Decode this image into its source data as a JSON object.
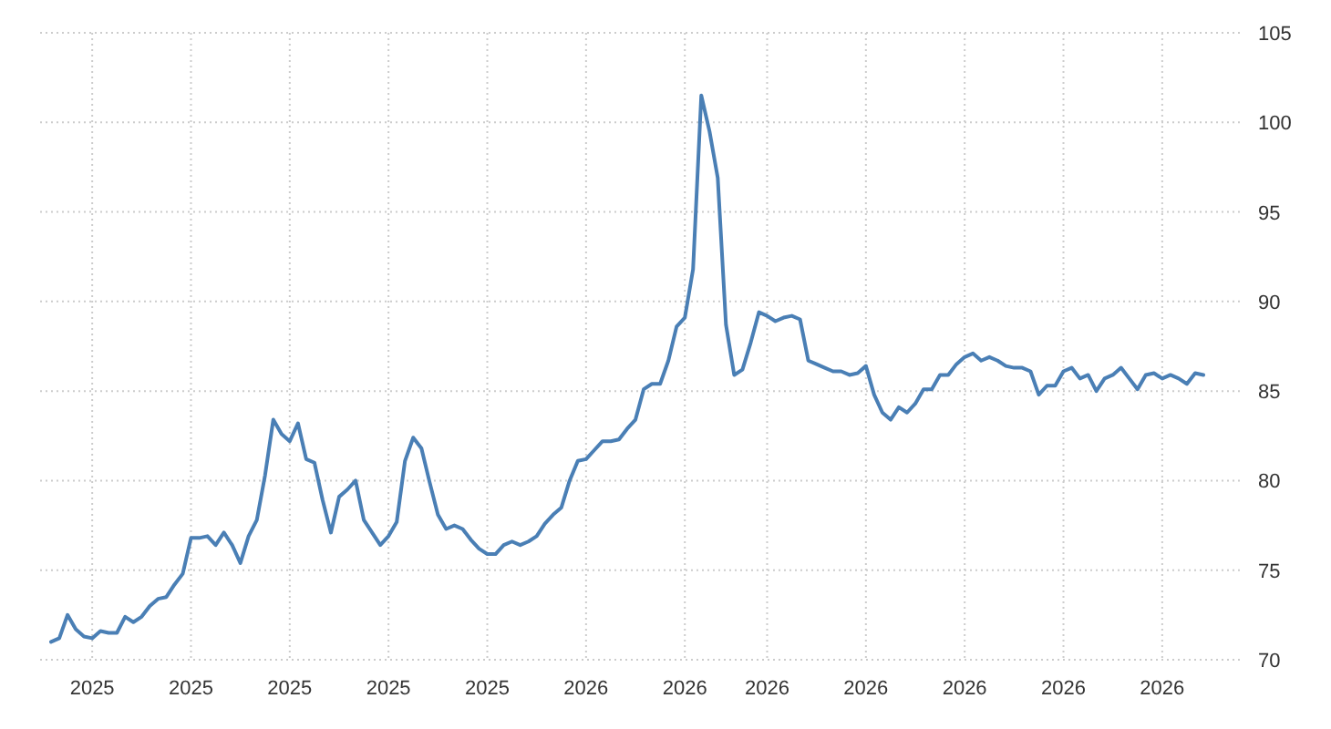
{
  "chart_data": {
    "type": "line",
    "grid": true,
    "ylim": [
      70,
      105
    ],
    "yticks": [
      70,
      75,
      80,
      85,
      90,
      95,
      100,
      105
    ],
    "categories": [
      null,
      null,
      null,
      null,
      null,
      "2025",
      null,
      null,
      null,
      null,
      null,
      null,
      null,
      null,
      null,
      null,
      null,
      "2025",
      null,
      null,
      null,
      null,
      null,
      null,
      null,
      null,
      null,
      null,
      null,
      "2025",
      null,
      null,
      null,
      null,
      null,
      null,
      null,
      null,
      null,
      null,
      null,
      "2025",
      null,
      null,
      null,
      null,
      null,
      null,
      null,
      null,
      null,
      null,
      null,
      "2025",
      null,
      null,
      null,
      null,
      null,
      null,
      null,
      null,
      null,
      null,
      null,
      "2026",
      null,
      null,
      null,
      null,
      null,
      null,
      null,
      null,
      null,
      null,
      null,
      "2026",
      null,
      null,
      null,
      null,
      null,
      null,
      null,
      null,
      null,
      "2026",
      null,
      null,
      null,
      null,
      null,
      null,
      null,
      null,
      null,
      null,
      null,
      "2026",
      null,
      null,
      null,
      null,
      null,
      null,
      null,
      null,
      null,
      null,
      null,
      "2026",
      null,
      null,
      null,
      null,
      null,
      null,
      null,
      null,
      null,
      null,
      null,
      "2026",
      null,
      null,
      null,
      null,
      null,
      null,
      null,
      null,
      null,
      null,
      null,
      "2026",
      null,
      null,
      null,
      null,
      null
    ],
    "series": [
      {
        "color": "#4a7fb5",
        "values": [
          71.0,
          71.2,
          72.5,
          71.7,
          71.3,
          71.2,
          71.6,
          71.5,
          71.5,
          72.4,
          72.1,
          72.4,
          73.0,
          73.4,
          73.5,
          74.2,
          74.8,
          76.8,
          76.8,
          76.9,
          76.4,
          77.1,
          76.4,
          75.4,
          76.9,
          77.8,
          80.3,
          83.4,
          82.6,
          82.2,
          83.2,
          81.2,
          81.0,
          78.9,
          77.1,
          79.1,
          79.5,
          80.0,
          77.8,
          77.1,
          76.4,
          76.9,
          77.7,
          81.1,
          82.4,
          81.8,
          79.9,
          78.1,
          77.3,
          77.5,
          77.3,
          76.7,
          76.2,
          75.9,
          75.9,
          76.4,
          76.6,
          76.4,
          76.6,
          76.9,
          77.6,
          78.1,
          78.5,
          80.0,
          81.1,
          81.2,
          81.7,
          82.2,
          82.2,
          82.3,
          82.9,
          83.4,
          85.1,
          85.4,
          85.4,
          86.7,
          88.6,
          89.1,
          91.8,
          101.5,
          99.5,
          96.9,
          88.7,
          85.9,
          86.2,
          87.7,
          89.4,
          89.2,
          88.9,
          89.1,
          89.2,
          89.0,
          86.7,
          86.5,
          86.3,
          86.1,
          86.1,
          85.9,
          86.0,
          86.4,
          84.8,
          83.8,
          83.4,
          84.1,
          83.8,
          84.3,
          85.1,
          85.1,
          85.9,
          85.9,
          86.5,
          86.9,
          87.1,
          86.7,
          86.9,
          86.7,
          86.4,
          86.3,
          86.3,
          86.1,
          84.8,
          85.3,
          85.3,
          86.1,
          86.3,
          85.7,
          85.9,
          85.0,
          85.7,
          85.9,
          86.3,
          85.7,
          85.1,
          85.9,
          86.0,
          85.7,
          85.9,
          85.7,
          85.4,
          86.0,
          85.9
        ]
      }
    ]
  }
}
